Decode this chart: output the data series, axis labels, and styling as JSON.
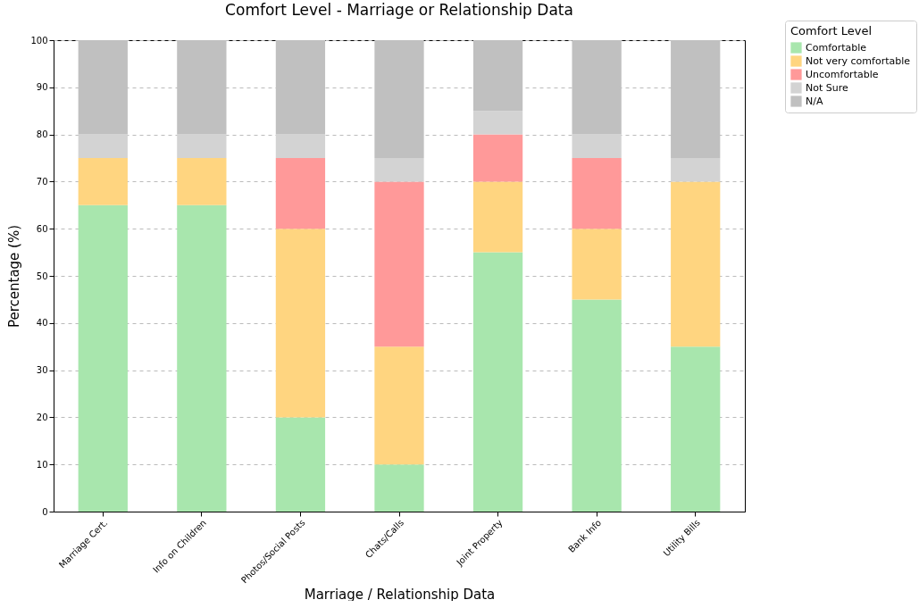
{
  "chart_data": {
    "type": "bar",
    "stacked": true,
    "title": "Comfort Level - Marriage or Relationship Data",
    "xlabel": "Marriage / Relationship Data",
    "ylabel": "Percentage (%)",
    "legend_title": "Comfort Level",
    "categories": [
      "Marriage Cert.",
      "Info on Children",
      "Photos/Social Posts",
      "Chats/Calls",
      "Joint Property",
      "Bank Info",
      "Utility Bills"
    ],
    "series": [
      {
        "name": "Comfortable",
        "color": "#a8e6ad",
        "values": [
          65,
          65,
          20,
          10,
          55,
          45,
          35
        ]
      },
      {
        "name": "Not very comfortable",
        "color": "#ffd580",
        "values": [
          10,
          10,
          40,
          25,
          15,
          15,
          35
        ]
      },
      {
        "name": "Uncomfortable",
        "color": "#ff9999",
        "values": [
          0,
          0,
          15,
          35,
          10,
          15,
          0
        ]
      },
      {
        "name": "Not Sure",
        "color": "#d3d3d3",
        "values": [
          5,
          5,
          5,
          5,
          5,
          5,
          5
        ]
      },
      {
        "name": "N/A",
        "color": "#c0c0c0",
        "values": [
          20,
          20,
          20,
          25,
          15,
          20,
          25
        ]
      }
    ],
    "ylim": [
      0,
      100
    ],
    "yticks": [
      0,
      10,
      20,
      30,
      40,
      50,
      60,
      70,
      80,
      90,
      100
    ],
    "grid": "y",
    "legend": "top right"
  }
}
